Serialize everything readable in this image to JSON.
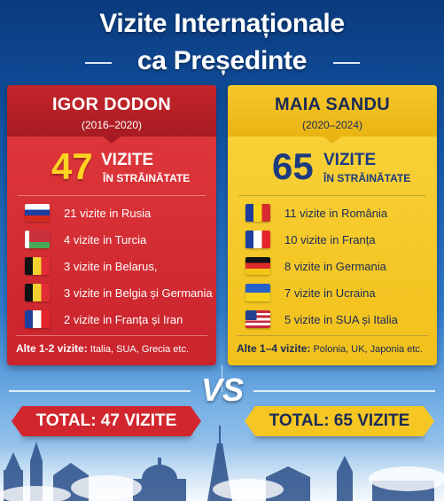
{
  "title": {
    "line1": "Vizite Internaționale",
    "line2": "ca Președinte"
  },
  "left": {
    "name": "IGOR DODON",
    "years": "(2016–2020)",
    "count": "47",
    "count_label": "VIZITE",
    "count_sub": "ÎN STRĂINĂTATE",
    "rows": [
      {
        "flag": "russia-flag",
        "text": "21 vizite in Rusia"
      },
      {
        "flag": "belarus-flag",
        "text": "4 vizite in Turcia"
      },
      {
        "flag": "belgium-flag",
        "text": "3 vizite in Belarus,"
      },
      {
        "flag": "belgium-flag",
        "text": "3 vizite in Belgia și Germania"
      },
      {
        "flag": "france-flag",
        "text": "2 vizite in Franța și Iran"
      }
    ],
    "other_label": "Alte 1-2 vizite:",
    "other_value": "Italia, SUA, Grecia etc.",
    "total": "TOTAL: 47 VIZITE",
    "color": "#d1262d"
  },
  "right": {
    "name": "MAIA SANDU",
    "years": "(2020–2024)",
    "count": "65",
    "count_label": "VIZITE",
    "count_sub": "ÎN STRĂINĂTATE",
    "rows": [
      {
        "flag": "romania-flag",
        "text": "11 vizite in România"
      },
      {
        "flag": "france-flag",
        "text": "10 vizite in Franța"
      },
      {
        "flag": "germany-flag",
        "text": "8 vizite in Germania"
      },
      {
        "flag": "ukraine-flag",
        "text": "7 vizite in Ucraina"
      },
      {
        "flag": "usa-flag",
        "text": "5 vizite in SUA și Italia"
      }
    ],
    "other_label": "Alte 1–4 vizite:",
    "other_value": "Polonia, UK, Japonia etc.",
    "total": "TOTAL: 65 VIZITE",
    "color": "#f6c623"
  },
  "vs": "VS"
}
